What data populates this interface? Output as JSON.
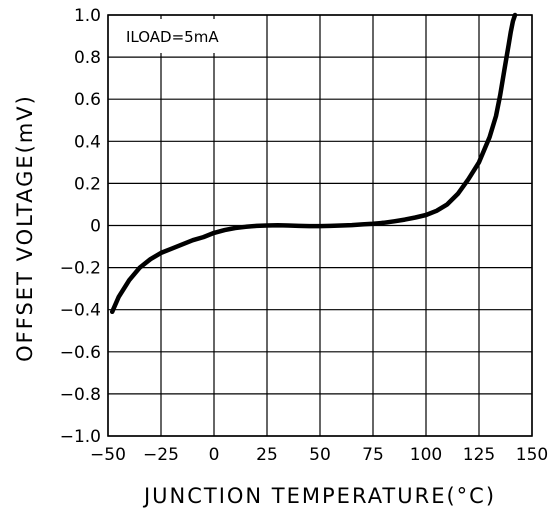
{
  "chart_data": {
    "type": "line",
    "title": "",
    "xlabel": "JUNCTION TEMPERATURE(°C)",
    "ylabel": "OFFSET VOLTAGE(mV)",
    "xlim": [
      -50,
      150
    ],
    "ylim": [
      -1.0,
      1.0
    ],
    "x_ticks": [
      -50,
      -25,
      0,
      25,
      50,
      75,
      100,
      125,
      150
    ],
    "x_tick_labels": [
      "−50",
      "−25",
      "0",
      "25",
      "50",
      "75",
      "100",
      "125",
      "150"
    ],
    "y_ticks": [
      1.0,
      0.8,
      0.6,
      0.4,
      0.2,
      0,
      -0.2,
      -0.4,
      -0.6,
      -0.8,
      -1.0
    ],
    "y_tick_labels": [
      "1.0",
      "0.8",
      "0.6",
      "0.4",
      "0.2",
      "0",
      "−0.2",
      "−0.4",
      "−0.6",
      "−0.8",
      "−1.0"
    ],
    "grid": true,
    "annotation": "ILOAD=5mA",
    "series": [
      {
        "x": [
          -48,
          -45,
          -40,
          -35,
          -30,
          -25,
          -20,
          -15,
          -10,
          -5,
          0,
          5,
          10,
          15,
          20,
          25,
          30,
          35,
          40,
          45,
          50,
          55,
          60,
          65,
          70,
          75,
          80,
          85,
          90,
          95,
          100,
          105,
          110,
          115,
          120,
          125,
          130,
          133,
          135,
          137,
          139,
          140,
          141,
          142
        ],
        "y": [
          -0.41,
          -0.34,
          -0.26,
          -0.2,
          -0.16,
          -0.13,
          -0.11,
          -0.09,
          -0.07,
          -0.055,
          -0.035,
          -0.022,
          -0.012,
          -0.006,
          -0.002,
          0.0,
          0.001,
          0.0,
          -0.002,
          -0.003,
          -0.003,
          -0.002,
          0.0,
          0.002,
          0.005,
          0.008,
          0.013,
          0.02,
          0.028,
          0.038,
          0.05,
          0.07,
          0.1,
          0.15,
          0.22,
          0.3,
          0.42,
          0.52,
          0.62,
          0.74,
          0.86,
          0.92,
          0.97,
          1.0
        ],
        "color": "#000000"
      }
    ]
  }
}
